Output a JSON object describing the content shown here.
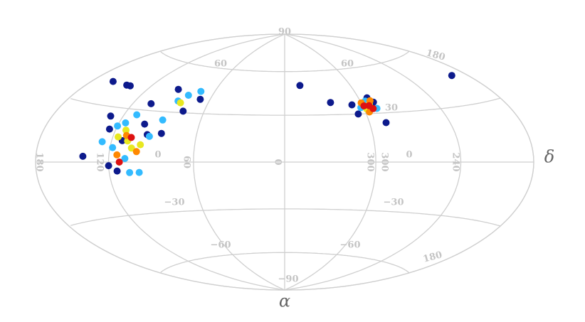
{
  "chart_data": {
    "type": "skymap",
    "x_label": "α",
    "y_label": "δ",
    "meridians": [
      0,
      60,
      120,
      180,
      240,
      300
    ],
    "parallels": [
      -60,
      -30,
      0,
      30,
      60
    ],
    "grid_labels": [
      "90",
      "60",
      "60",
      "180",
      "30",
      "180",
      "120",
      "0",
      "60",
      "0",
      "300",
      "300",
      "0",
      "240",
      "−30",
      "−30",
      "−60",
      "−60",
      "180",
      "−90"
    ],
    "series": [
      {
        "color": "#0d1a8c",
        "x": [
          160,
          143,
          139,
          140,
          93,
          105,
          76,
          68,
          100,
          112,
          120,
          114,
          85,
          95,
          125,
          130,
          346,
          324,
          308,
          288,
          195,
          293,
          300,
          306,
          290
        ],
        "values": [
          42,
          42,
          42,
          3,
          44,
          34,
          31,
          39,
          22,
          12,
          -2,
          -5,
          17,
          16,
          18,
          25,
          50,
          38,
          36,
          24,
          45,
          40,
          35,
          30,
          37
        ]
      },
      {
        "color": "#33bbff",
        "x": [
          80,
          72,
          85,
          110,
          120,
          127,
          108,
          105,
          98,
          115,
          118,
          93,
          88,
          296,
          290,
          302
        ],
        "values": [
          41,
          44,
          37,
          27,
          20,
          11,
          2,
          -6,
          -6,
          22,
          8,
          15,
          25,
          38,
          33,
          34
        ]
      },
      {
        "color": "#e8e820",
        "x": [
          112,
          108,
          116,
          104,
          82,
          98,
          294,
          298
        ],
        "values": [
          18,
          12,
          14,
          8,
          36,
          10,
          36,
          33
        ]
      },
      {
        "color": "#ff8800",
        "x": [
          110,
          114,
          100,
          292,
          300,
          297
        ],
        "values": [
          15,
          4,
          6,
          38,
          37,
          31
        ]
      },
      {
        "color": "#dd1111",
        "x": [
          112,
          106,
          295,
          293,
          299
        ],
        "values": [
          0,
          14,
          35,
          33,
          35
        ]
      }
    ]
  }
}
